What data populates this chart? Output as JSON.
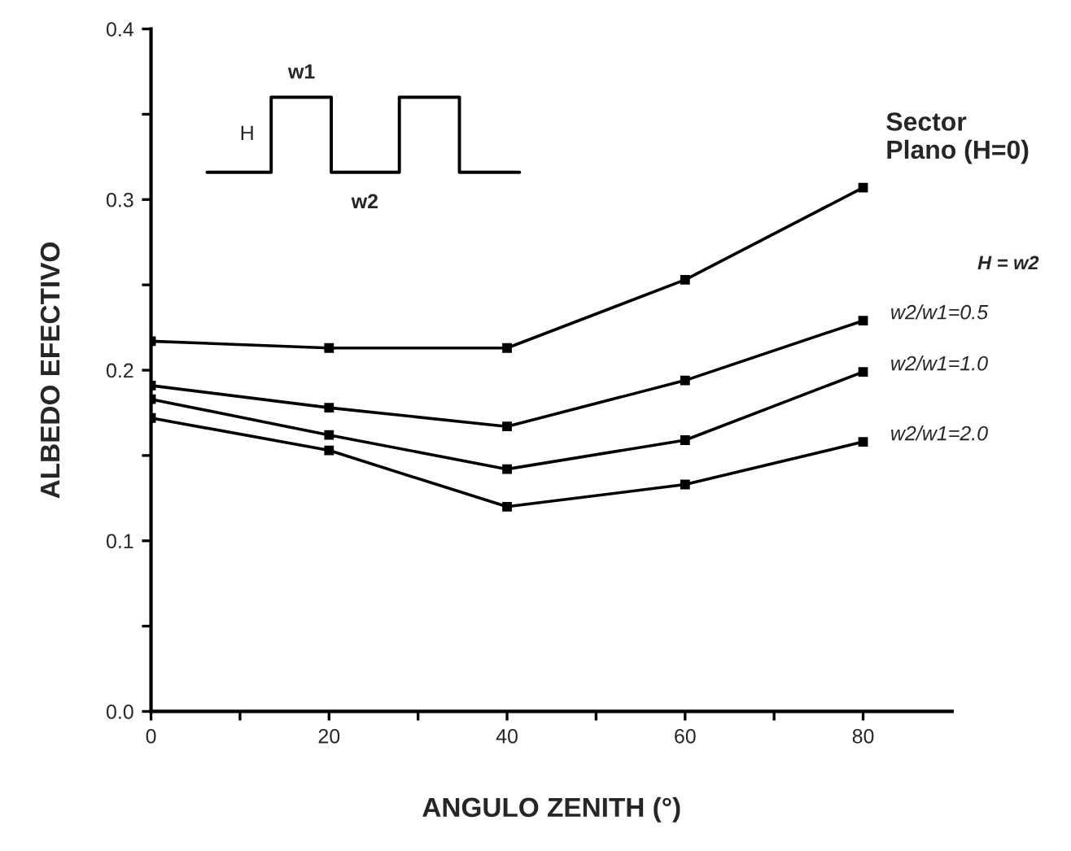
{
  "chart_data": {
    "type": "line",
    "xlabel": "ANGULO ZENITH (°)",
    "ylabel": "ALBEDO EFECTIVO",
    "x": [
      0,
      20,
      40,
      60,
      80
    ],
    "series": [
      {
        "name": "Sector\nPlano (H=0)",
        "color": "#000000",
        "values": [
          0.217,
          0.213,
          0.213,
          0.253,
          0.307
        ]
      },
      {
        "name": "w2/w1=0.5",
        "color": "#000000",
        "values": [
          0.191,
          0.178,
          0.167,
          0.194,
          0.229
        ]
      },
      {
        "name": "w2/w1=1.0",
        "color": "#000000",
        "values": [
          0.183,
          0.162,
          0.142,
          0.159,
          0.199
        ]
      },
      {
        "name": "w2/w1=2.0",
        "color": "#000000",
        "values": [
          0.172,
          0.153,
          0.12,
          0.133,
          0.158
        ]
      }
    ],
    "annotations": [
      "H = w2",
      "w1",
      "w2",
      "H"
    ],
    "xlim": [
      0,
      90
    ],
    "xticks": [
      0,
      {
        "value": 10,
        "label": null
      },
      20,
      {
        "value": 30,
        "label": null
      },
      40,
      {
        "value": 50,
        "label": null
      },
      60,
      {
        "value": 70,
        "label": null
      },
      80
    ],
    "ylim": [
      0,
      0.4
    ],
    "yticks": [
      {
        "value": 0,
        "label": "0.0"
      },
      {
        "value": 0.05,
        "label": null
      },
      0.1,
      {
        "value": 0.15,
        "label": null
      },
      0.2,
      {
        "value": 0.25,
        "label": null
      },
      0.3,
      {
        "value": 0.35,
        "label": null
      },
      0.4
    ],
    "marker": "square",
    "line_style": "solid",
    "grid": false,
    "legend": false
  }
}
